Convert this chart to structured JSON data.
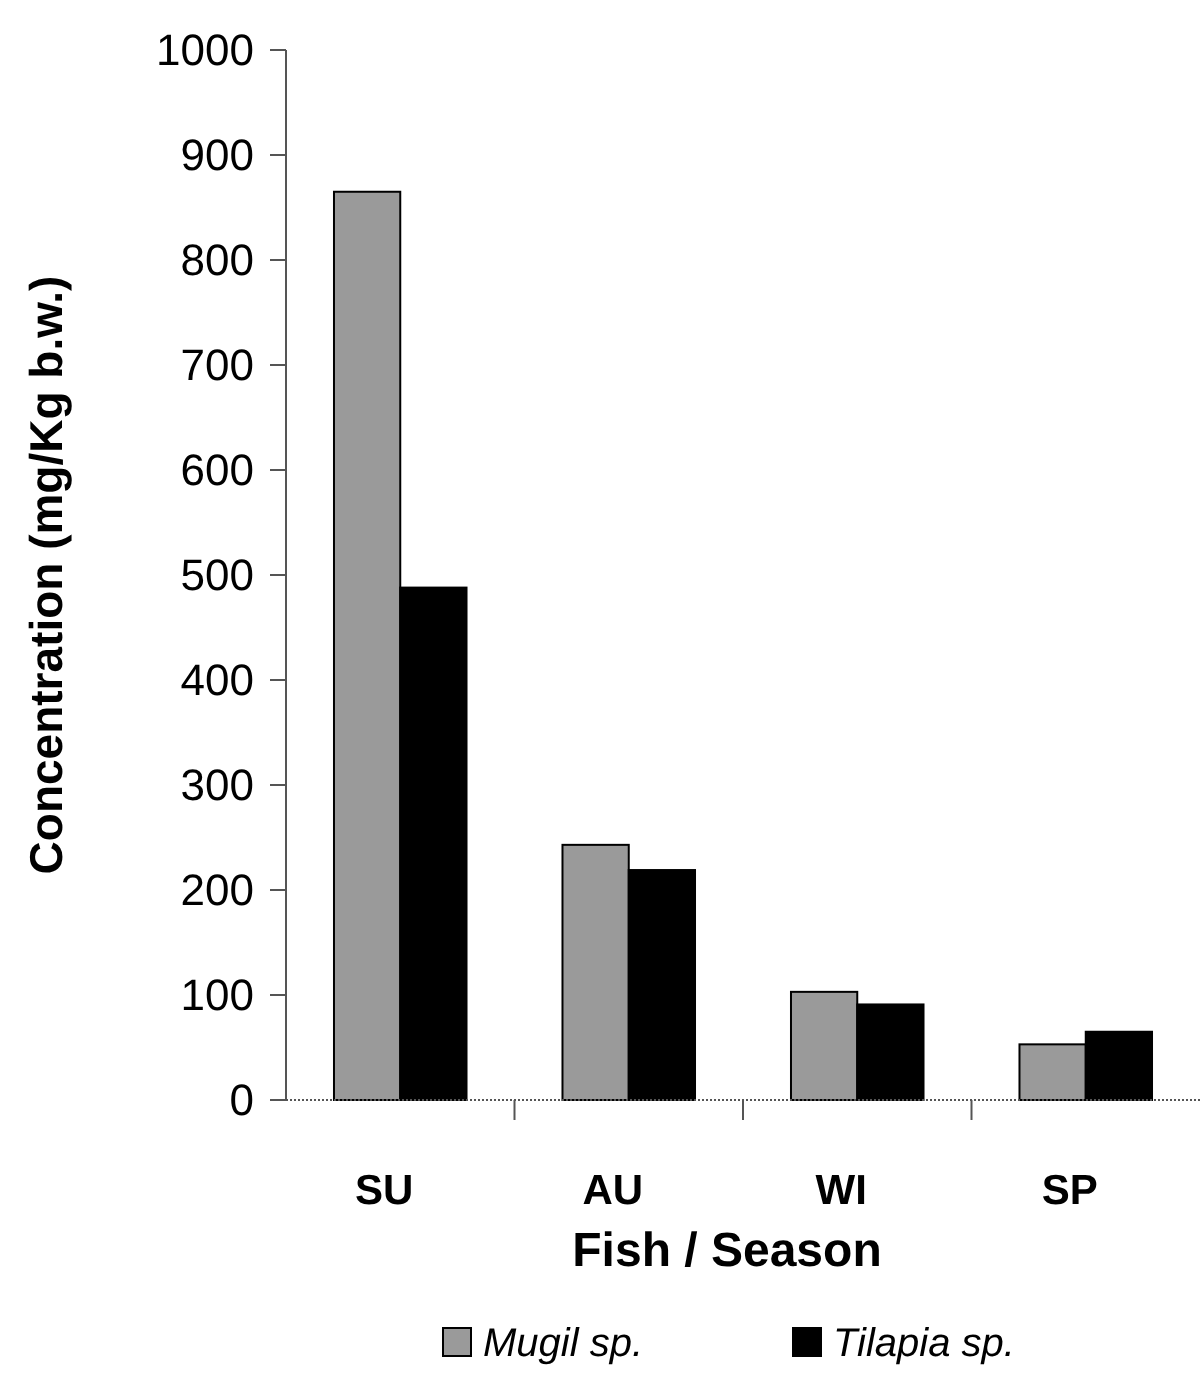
{
  "chart_data": {
    "type": "bar",
    "xlabel": "Fish / Season",
    "ylabel": "Concentration (mg/Kg b.w.)",
    "categories": [
      "SU",
      "AU",
      "WI",
      "SP"
    ],
    "series": [
      {
        "name": "Mugil sp.",
        "color": "#9a9a9a",
        "values": [
          865,
          243,
          103,
          53
        ]
      },
      {
        "name": "Tilapia sp.",
        "color": "#000000",
        "values": [
          488,
          219,
          91,
          65
        ]
      }
    ],
    "ylim": [
      0,
      1000
    ],
    "yticks": [
      0,
      100,
      200,
      300,
      400,
      500,
      600,
      700,
      800,
      900,
      1000
    ],
    "grid": false,
    "legend": "bottom"
  }
}
